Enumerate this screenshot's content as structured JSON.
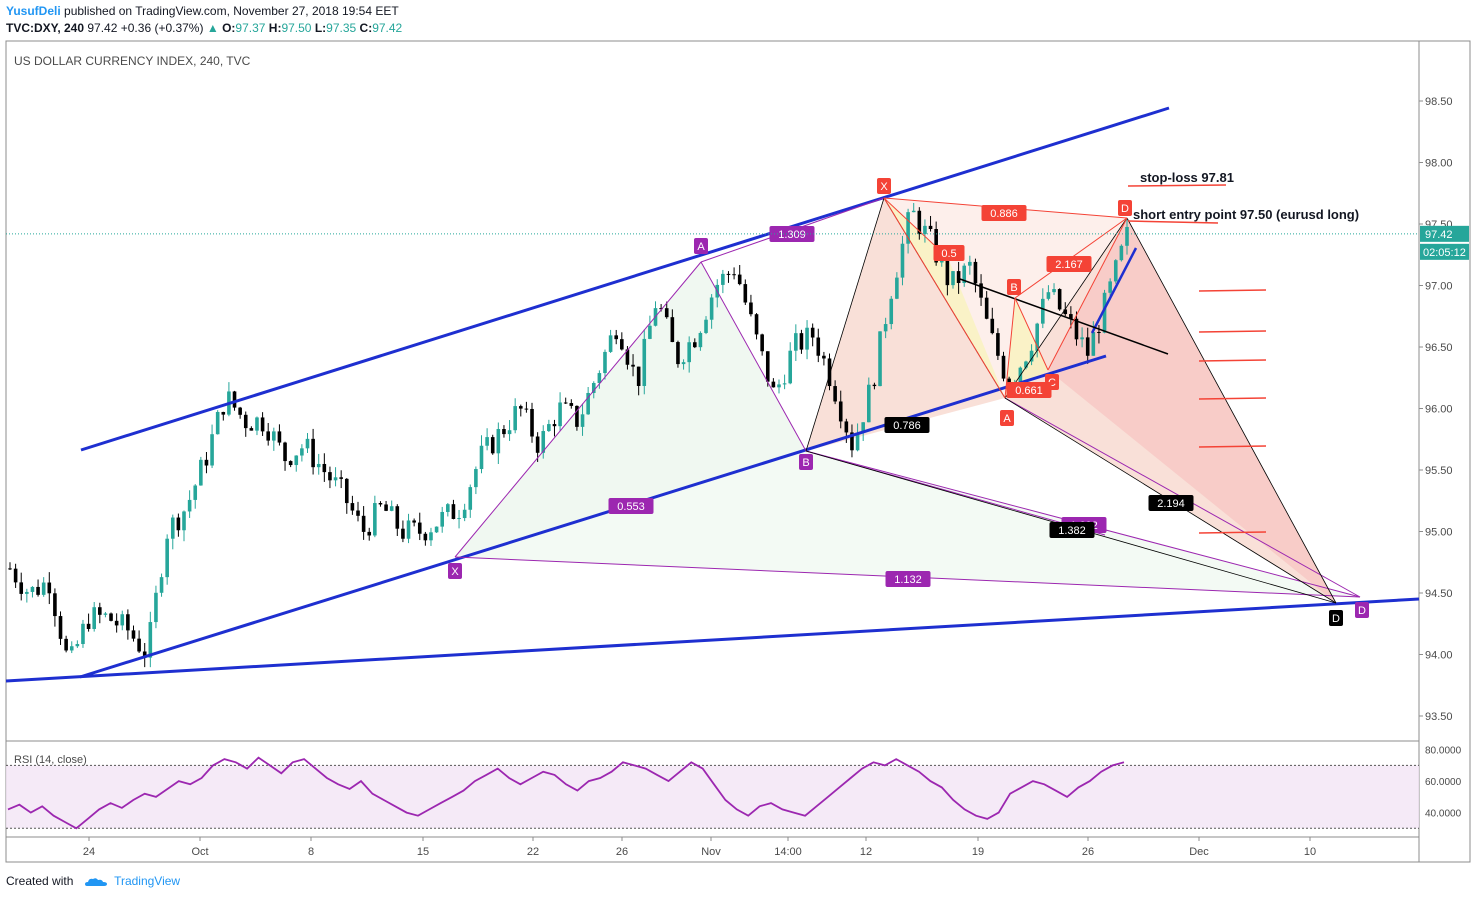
{
  "header": {
    "author": "YusufDeli",
    "published_text": "published on TradingView.com, November 27, 2018 19:54 EET",
    "symbol": "TVC:DXY, 240",
    "last": "97.42",
    "change_arrow": "▲",
    "change": "+0.36 (+0.37%)",
    "o_label": "O:",
    "o": "97.37",
    "h_label": "H:",
    "h": "97.50",
    "l_label": "L:",
    "l": "97.35",
    "c_label": "C:",
    "c": "97.42"
  },
  "chart_data": {
    "type": "candlestick",
    "title": "US DOLLAR CURRENCY INDEX, 240, TVC",
    "y_ticks": [
      "98.50",
      "98.00",
      "97.50",
      "97.00",
      "96.50",
      "96.00",
      "95.50",
      "95.00",
      "94.50",
      "94.00",
      "93.50"
    ],
    "ylim": [
      93.3,
      98.95
    ],
    "x_ticks": [
      "24",
      "Oct",
      "8",
      "15",
      "22",
      "26",
      "Nov",
      "14:00",
      "12",
      "19",
      "26",
      "Dec",
      "10"
    ],
    "last_price_label": "97.42",
    "countdown_label": "02:05:12",
    "close_path": [
      94.7,
      94.5,
      94.6,
      93.9,
      94.3,
      94.3,
      94.2,
      94.0,
      95.0,
      95.2,
      95.6,
      96.1,
      95.9,
      95.9,
      95.6,
      95.7,
      95.5,
      95.3,
      95.0,
      95.2,
      95.0,
      95.0,
      95.1,
      95.2,
      95.6,
      95.8,
      96.0,
      95.7,
      96.0,
      95.9,
      96.3,
      96.7,
      96.2,
      96.9,
      96.4,
      96.6,
      97.0,
      97.15,
      96.6,
      96.1,
      96.5,
      96.6,
      96.2,
      95.7,
      96.2,
      97.0,
      97.6,
      97.35,
      97.0,
      97.15,
      96.6,
      96.2,
      96.5,
      96.95,
      96.7,
      96.45,
      96.9,
      97.4
    ],
    "annotations": [
      {
        "text": "stop-loss 97.81"
      },
      {
        "text": "short entry point 97.50 (eurusd long)"
      }
    ],
    "pattern_labels": [
      "A",
      "X",
      "B",
      "D",
      "X",
      "D",
      "B",
      "A",
      "C",
      "D"
    ],
    "ratio_labels": [
      {
        "text": "1.309",
        "color": "#9c27b0"
      },
      {
        "text": "0.553",
        "color": "#9c27b0"
      },
      {
        "text": "1.132",
        "color": "#9c27b0"
      },
      {
        "text": "1.602",
        "color": "#9c27b0"
      },
      {
        "text": "0.786",
        "color": "#000000"
      },
      {
        "text": "1.382",
        "color": "#000000"
      },
      {
        "text": "2.194",
        "color": "#000000"
      },
      {
        "text": "0.886",
        "color": "#f44336"
      },
      {
        "text": "0.5",
        "color": "#f44336"
      },
      {
        "text": "2.167",
        "color": "#f44336"
      },
      {
        "text": "0.661",
        "color": "#f44336"
      }
    ],
    "rsi": {
      "label": "RSI (14, close)",
      "y_ticks": [
        "80.0000",
        "60.0000",
        "40.0000"
      ],
      "ylim": [
        27,
        83
      ],
      "values": [
        42,
        45,
        40,
        44,
        38,
        34,
        30,
        36,
        42,
        46,
        43,
        48,
        52,
        50,
        55,
        60,
        58,
        62,
        70,
        74,
        72,
        68,
        75,
        70,
        65,
        72,
        74,
        68,
        62,
        58,
        55,
        60,
        52,
        48,
        44,
        40,
        38,
        42,
        46,
        50,
        54,
        60,
        64,
        68,
        62,
        58,
        62,
        66,
        64,
        58,
        54,
        60,
        62,
        66,
        72,
        70,
        68,
        64,
        60,
        66,
        72,
        68,
        58,
        48,
        42,
        38,
        44,
        46,
        42,
        40,
        38,
        44,
        50,
        56,
        62,
        68,
        72,
        70,
        74,
        70,
        66,
        60,
        56,
        48,
        42,
        38,
        36,
        40,
        52,
        56,
        60,
        58,
        54,
        50,
        56,
        60,
        66,
        70,
        72
      ]
    }
  },
  "footer": {
    "created_with": "Created with",
    "brand": "TradingView"
  },
  "colors": {
    "up": "#26a69a",
    "down": "#000000",
    "channel": "#1e2fd0",
    "pattern_purple": "#9c27b0",
    "pattern_red": "#f44336",
    "pattern_black": "#000000"
  }
}
